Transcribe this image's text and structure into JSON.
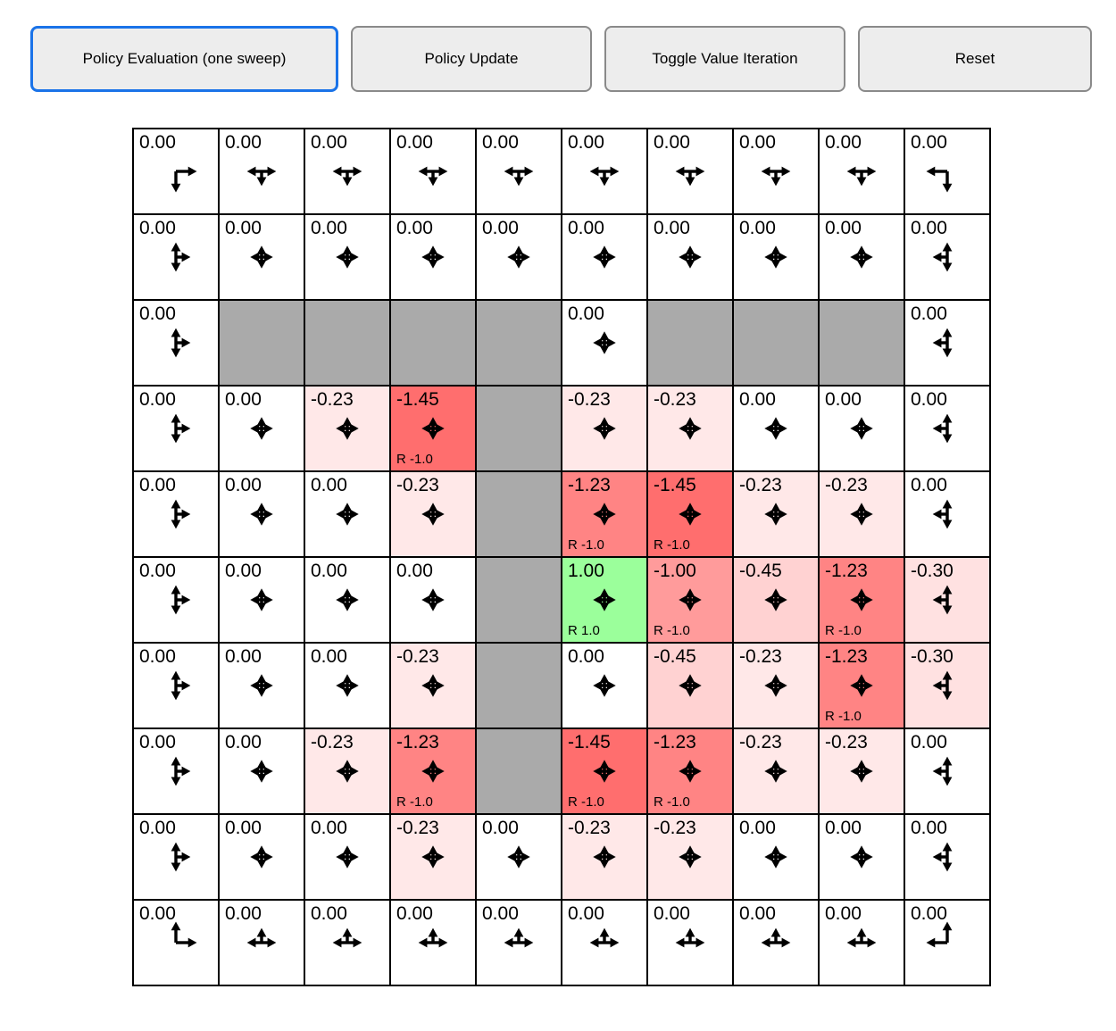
{
  "toolbar": {
    "buttons": [
      {
        "label": "Policy Evaluation (one sweep)",
        "active": true
      },
      {
        "label": "Policy Update",
        "active": false
      },
      {
        "label": "Toggle Value Iteration",
        "active": false
      },
      {
        "label": "Reset",
        "active": false
      }
    ],
    "active_border_color": "#1a73e8"
  },
  "grid": {
    "rows": 10,
    "cols": 10,
    "wall_color": "#aaaaaa",
    "value_colors": {
      "1.00": "#9bff9b",
      "0.00": "#ffffff",
      "-0.23": "#ffe8e8",
      "-0.30": "#ffe1e1",
      "-0.45": "#ffd2d2",
      "-1.00": "#ff9b9b",
      "-1.23": "#ff8484",
      "-1.45": "#ff6e6e"
    },
    "cells": [
      [
        {
          "v": "0.00",
          "a": "DR"
        },
        {
          "v": "0.00",
          "a": "DLR"
        },
        {
          "v": "0.00",
          "a": "DLR"
        },
        {
          "v": "0.00",
          "a": "DLR"
        },
        {
          "v": "0.00",
          "a": "DLR"
        },
        {
          "v": "0.00",
          "a": "DLR"
        },
        {
          "v": "0.00",
          "a": "DLR"
        },
        {
          "v": "0.00",
          "a": "DLR"
        },
        {
          "v": "0.00",
          "a": "DLR"
        },
        {
          "v": "0.00",
          "a": "DL"
        }
      ],
      [
        {
          "v": "0.00",
          "a": "UDR"
        },
        {
          "v": "0.00",
          "a": "UDLR"
        },
        {
          "v": "0.00",
          "a": "UDLR"
        },
        {
          "v": "0.00",
          "a": "UDLR"
        },
        {
          "v": "0.00",
          "a": "UDLR"
        },
        {
          "v": "0.00",
          "a": "UDLR"
        },
        {
          "v": "0.00",
          "a": "UDLR"
        },
        {
          "v": "0.00",
          "a": "UDLR"
        },
        {
          "v": "0.00",
          "a": "UDLR"
        },
        {
          "v": "0.00",
          "a": "UDL"
        }
      ],
      [
        {
          "v": "0.00",
          "a": "UDR"
        },
        {
          "wall": true
        },
        {
          "wall": true
        },
        {
          "wall": true
        },
        {
          "wall": true
        },
        {
          "v": "0.00",
          "a": "UDLR"
        },
        {
          "wall": true
        },
        {
          "wall": true
        },
        {
          "wall": true
        },
        {
          "v": "0.00",
          "a": "UDL"
        }
      ],
      [
        {
          "v": "0.00",
          "a": "UDR"
        },
        {
          "v": "0.00",
          "a": "UDLR"
        },
        {
          "v": "-0.23",
          "a": "UDLR"
        },
        {
          "v": "-1.45",
          "a": "UDLR",
          "r": "R -1.0"
        },
        {
          "wall": true
        },
        {
          "v": "-0.23",
          "a": "UDLR"
        },
        {
          "v": "-0.23",
          "a": "UDLR"
        },
        {
          "v": "0.00",
          "a": "UDLR"
        },
        {
          "v": "0.00",
          "a": "UDLR"
        },
        {
          "v": "0.00",
          "a": "UDL"
        }
      ],
      [
        {
          "v": "0.00",
          "a": "UDR"
        },
        {
          "v": "0.00",
          "a": "UDLR"
        },
        {
          "v": "0.00",
          "a": "UDLR"
        },
        {
          "v": "-0.23",
          "a": "UDLR"
        },
        {
          "wall": true
        },
        {
          "v": "-1.23",
          "a": "UDLR",
          "r": "R -1.0"
        },
        {
          "v": "-1.45",
          "a": "UDLR",
          "r": "R -1.0"
        },
        {
          "v": "-0.23",
          "a": "UDLR"
        },
        {
          "v": "-0.23",
          "a": "UDLR"
        },
        {
          "v": "0.00",
          "a": "UDL"
        }
      ],
      [
        {
          "v": "0.00",
          "a": "UDR"
        },
        {
          "v": "0.00",
          "a": "UDLR"
        },
        {
          "v": "0.00",
          "a": "UDLR"
        },
        {
          "v": "0.00",
          "a": "UDLR"
        },
        {
          "wall": true
        },
        {
          "v": "1.00",
          "a": "UDLR",
          "r": "R 1.0"
        },
        {
          "v": "-1.00",
          "a": "UDLR",
          "r": "R -1.0"
        },
        {
          "v": "-0.45",
          "a": "UDLR"
        },
        {
          "v": "-1.23",
          "a": "UDLR",
          "r": "R -1.0"
        },
        {
          "v": "-0.30",
          "a": "UDL"
        }
      ],
      [
        {
          "v": "0.00",
          "a": "UDR"
        },
        {
          "v": "0.00",
          "a": "UDLR"
        },
        {
          "v": "0.00",
          "a": "UDLR"
        },
        {
          "v": "-0.23",
          "a": "UDLR"
        },
        {
          "wall": true
        },
        {
          "v": "0.00",
          "a": "UDLR"
        },
        {
          "v": "-0.45",
          "a": "UDLR"
        },
        {
          "v": "-0.23",
          "a": "UDLR"
        },
        {
          "v": "-1.23",
          "a": "UDLR",
          "r": "R -1.0"
        },
        {
          "v": "-0.30",
          "a": "UDL"
        }
      ],
      [
        {
          "v": "0.00",
          "a": "UDR"
        },
        {
          "v": "0.00",
          "a": "UDLR"
        },
        {
          "v": "-0.23",
          "a": "UDLR"
        },
        {
          "v": "-1.23",
          "a": "UDLR",
          "r": "R -1.0"
        },
        {
          "wall": true
        },
        {
          "v": "-1.45",
          "a": "UDLR",
          "r": "R -1.0"
        },
        {
          "v": "-1.23",
          "a": "UDLR",
          "r": "R -1.0"
        },
        {
          "v": "-0.23",
          "a": "UDLR"
        },
        {
          "v": "-0.23",
          "a": "UDLR"
        },
        {
          "v": "0.00",
          "a": "UDL"
        }
      ],
      [
        {
          "v": "0.00",
          "a": "UDR"
        },
        {
          "v": "0.00",
          "a": "UDLR"
        },
        {
          "v": "0.00",
          "a": "UDLR"
        },
        {
          "v": "-0.23",
          "a": "UDLR"
        },
        {
          "v": "0.00",
          "a": "UDLR"
        },
        {
          "v": "-0.23",
          "a": "UDLR"
        },
        {
          "v": "-0.23",
          "a": "UDLR"
        },
        {
          "v": "0.00",
          "a": "UDLR"
        },
        {
          "v": "0.00",
          "a": "UDLR"
        },
        {
          "v": "0.00",
          "a": "UDL"
        }
      ],
      [
        {
          "v": "0.00",
          "a": "UR"
        },
        {
          "v": "0.00",
          "a": "ULR"
        },
        {
          "v": "0.00",
          "a": "ULR"
        },
        {
          "v": "0.00",
          "a": "ULR"
        },
        {
          "v": "0.00",
          "a": "ULR"
        },
        {
          "v": "0.00",
          "a": "ULR"
        },
        {
          "v": "0.00",
          "a": "ULR"
        },
        {
          "v": "0.00",
          "a": "ULR"
        },
        {
          "v": "0.00",
          "a": "ULR"
        },
        {
          "v": "0.00",
          "a": "UL"
        }
      ]
    ]
  }
}
